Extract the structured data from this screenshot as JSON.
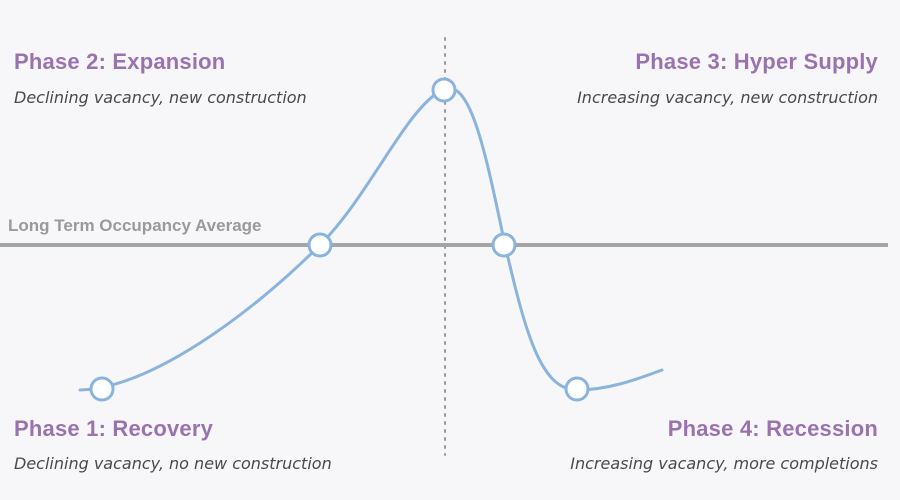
{
  "average_line": {
    "label": "Long Term Occupancy Average",
    "color": "#a3a6a8"
  },
  "curve": {
    "color": "#8ab4dd",
    "marker_fill": "#ffffff"
  },
  "divider": {
    "color": "#9a9a9a"
  },
  "phases": [
    {
      "title": "Phase 1: Recovery",
      "description": "Declining vacancy, no new construction"
    },
    {
      "title": "Phase 2: Expansion",
      "description": "Declining vacancy, new construction"
    },
    {
      "title": "Phase 3: Hyper Supply",
      "description": "Increasing vacancy, new construction"
    },
    {
      "title": "Phase 4: Recession",
      "description": "Increasing vacancy, more completions"
    }
  ],
  "colors": {
    "phase_title": "#9b72b0",
    "description": "#4a4a4a",
    "background": "#f7f7fa"
  }
}
